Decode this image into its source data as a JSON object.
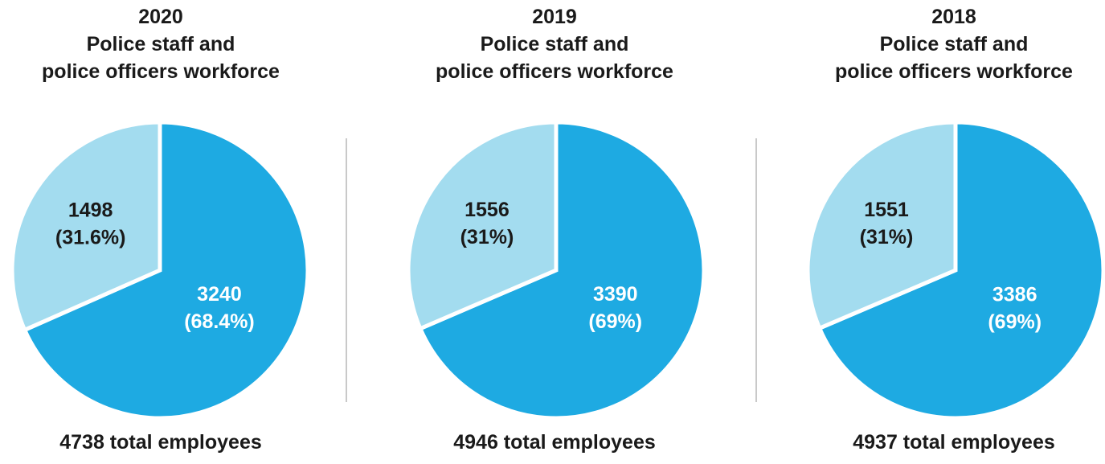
{
  "colors": {
    "officers": "#1eaae2",
    "staff": "#a3dcef",
    "separator": "#ffffff",
    "label_dark": "#1a1a1a",
    "label_light": "#ffffff",
    "divider": "#c9c9c9"
  },
  "chart_data": [
    {
      "type": "pie",
      "title_lines": [
        "2020",
        "Police staff and",
        "police officers workforce"
      ],
      "slices": [
        {
          "value": 3240,
          "value_label": "3240",
          "pct_label": "(68.4%)",
          "color": "#1eaae2",
          "text_color": "#ffffff"
        },
        {
          "value": 1498,
          "value_label": "1498",
          "pct_label": "(31.6%)",
          "color": "#a3dcef",
          "text_color": "#1a1a1a"
        }
      ],
      "total_label": "4738 total employees"
    },
    {
      "type": "pie",
      "title_lines": [
        "2019",
        "Police staff and",
        "police officers workforce"
      ],
      "slices": [
        {
          "value": 3390,
          "value_label": "3390",
          "pct_label": "(69%)",
          "color": "#1eaae2",
          "text_color": "#ffffff"
        },
        {
          "value": 1556,
          "value_label": "1556",
          "pct_label": "(31%)",
          "color": "#a3dcef",
          "text_color": "#1a1a1a"
        }
      ],
      "total_label": "4946 total employees"
    },
    {
      "type": "pie",
      "title_lines": [
        "2018",
        "Police staff and",
        "police officers workforce"
      ],
      "slices": [
        {
          "value": 3386,
          "value_label": "3386",
          "pct_label": "(69%)",
          "color": "#1eaae2",
          "text_color": "#ffffff"
        },
        {
          "value": 1551,
          "value_label": "1551",
          "pct_label": "(31%)",
          "color": "#a3dcef",
          "text_color": "#1a1a1a"
        }
      ],
      "total_label": "4937 total employees"
    }
  ]
}
